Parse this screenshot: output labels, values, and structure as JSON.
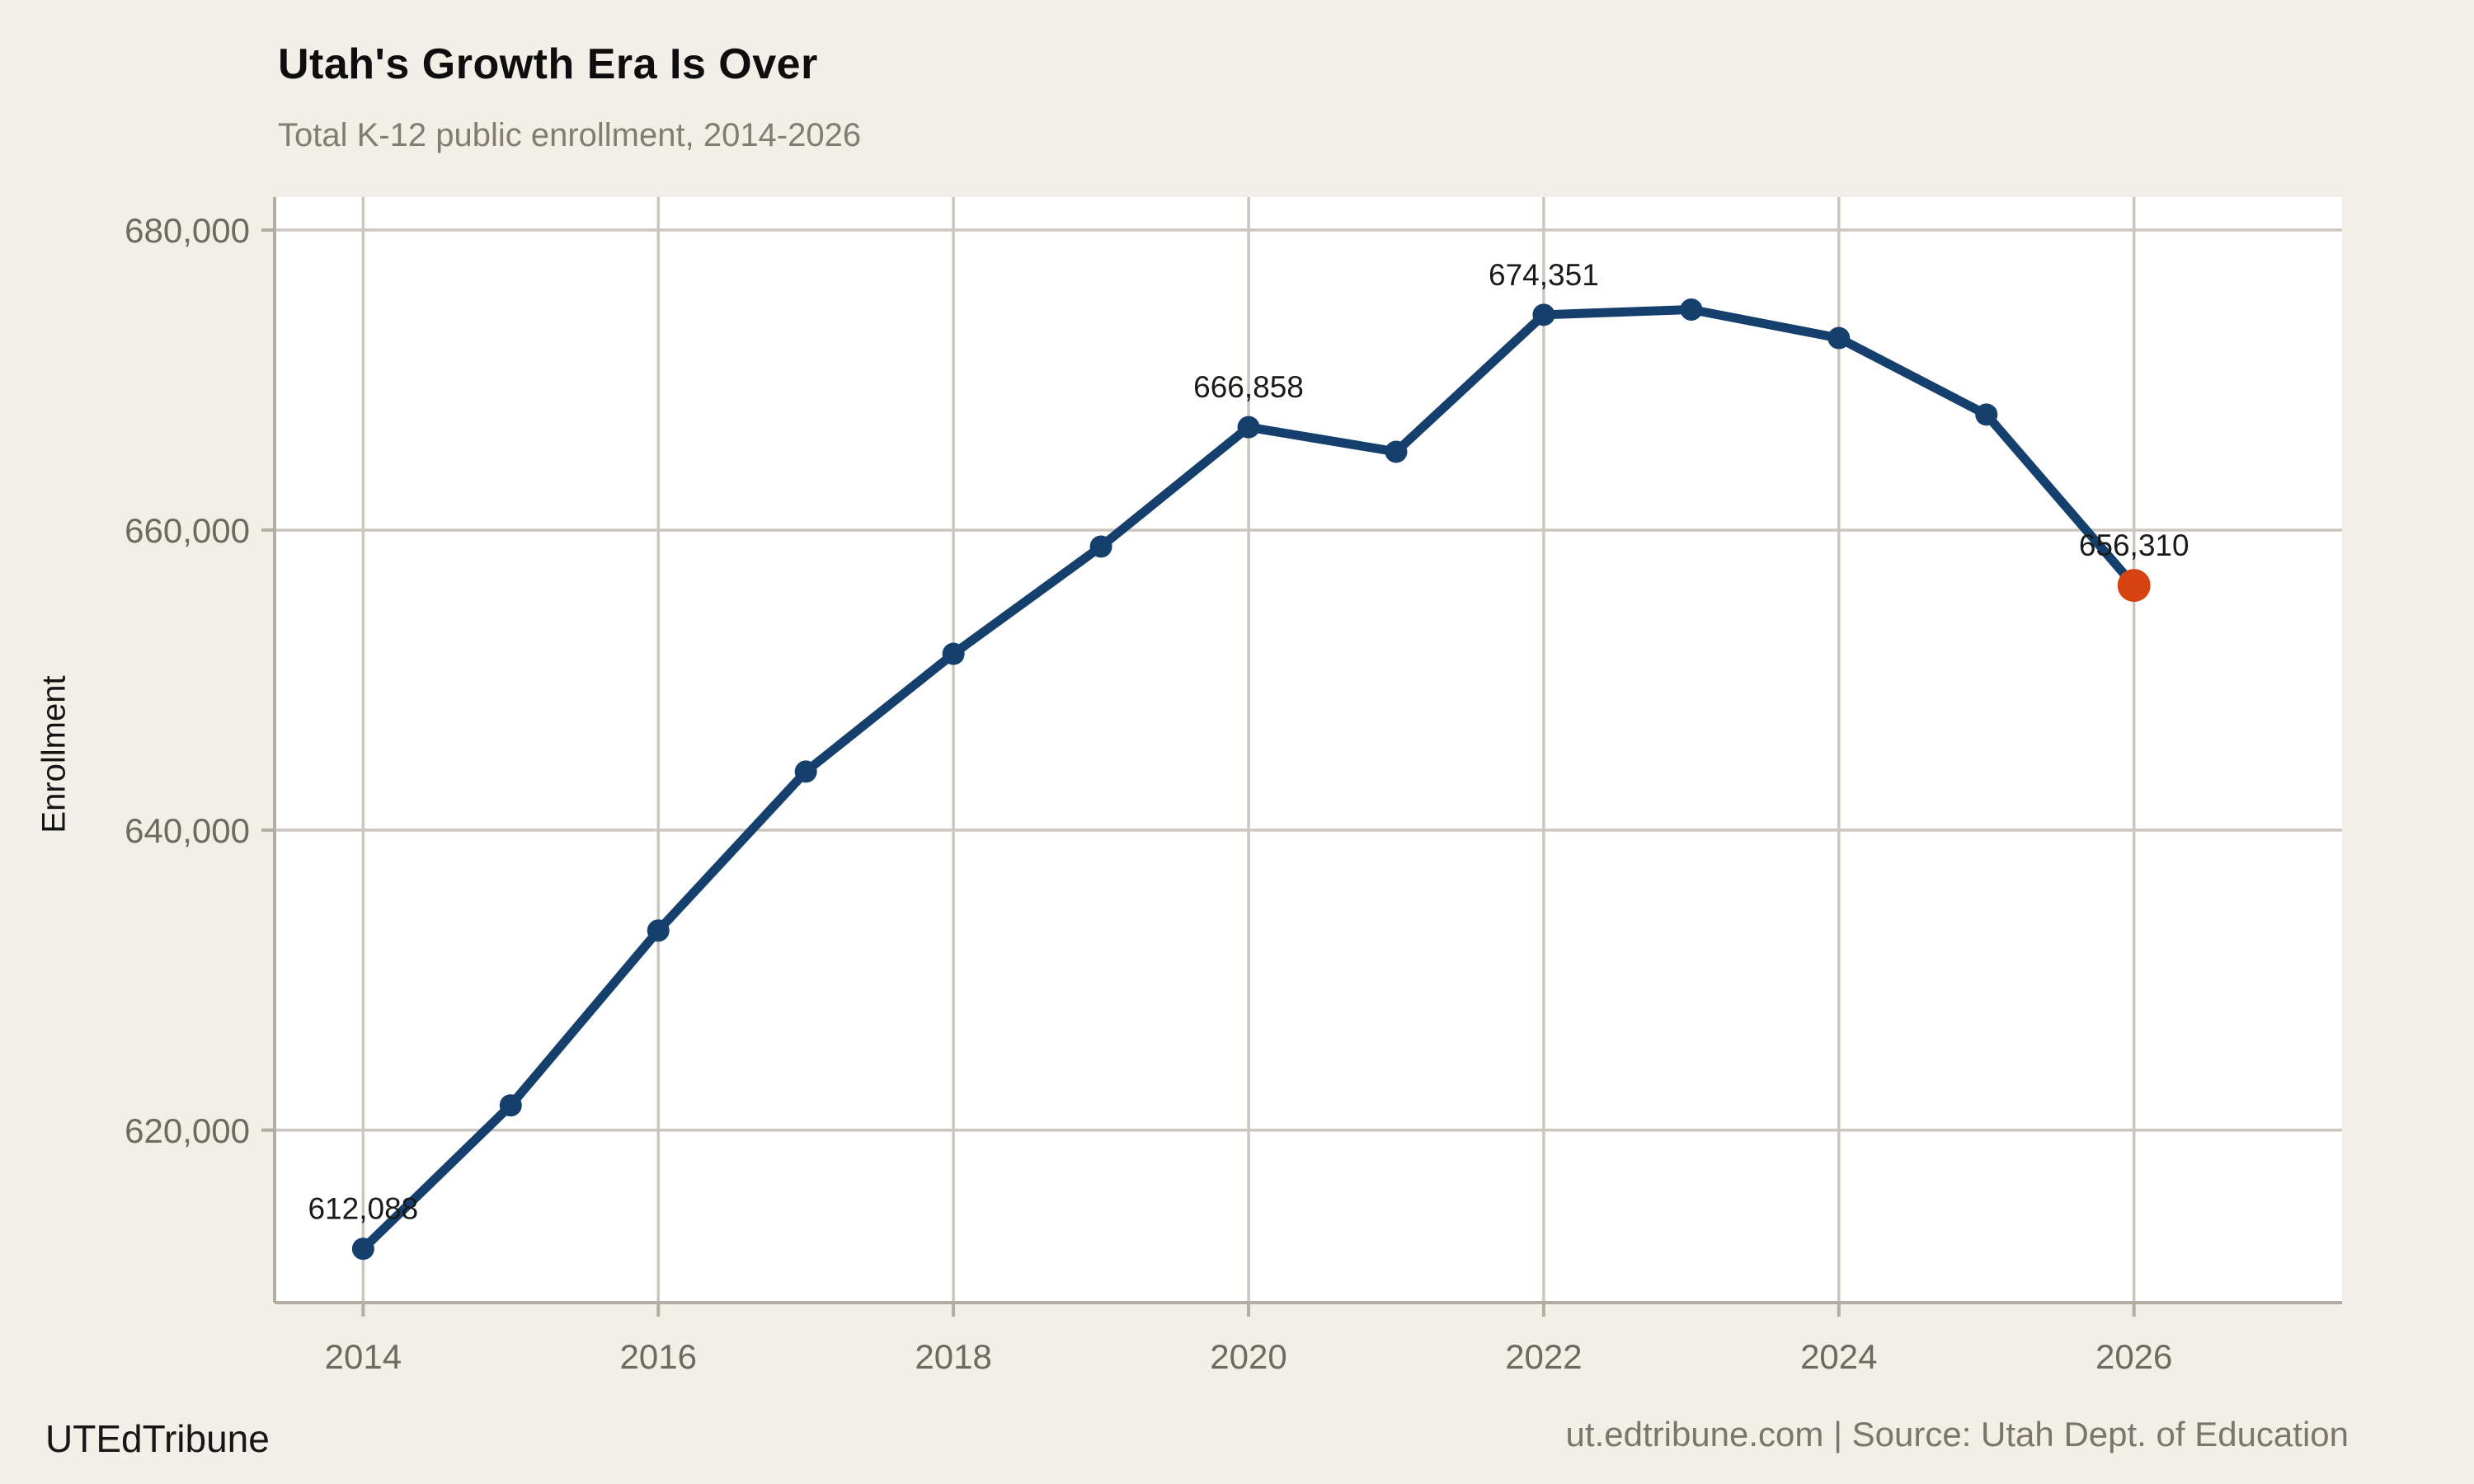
{
  "header": {
    "title": "Utah's Growth Era Is Over",
    "subtitle": "Total K-12 public enrollment, 2014-2026"
  },
  "footer": {
    "brand": "UTEdTribune",
    "source": "ut.edtribune.com | Source: Utah Dept. of Education"
  },
  "chart_data": {
    "type": "line",
    "title": "Utah's Growth Era Is Over",
    "subtitle": "Total K-12 public enrollment, 2014-2026",
    "xlabel": "",
    "ylabel": "Enrollment",
    "x": [
      2014,
      2015,
      2016,
      2017,
      2018,
      2019,
      2020,
      2021,
      2022,
      2023,
      2024,
      2025,
      2026
    ],
    "values": [
      612088,
      621650,
      633300,
      643900,
      651750,
      658900,
      666858,
      665220,
      674351,
      674700,
      672800,
      667700,
      656310
    ],
    "labeled_points": [
      {
        "x": 2014,
        "label": "612,088"
      },
      {
        "x": 2020,
        "label": "666,858"
      },
      {
        "x": 2022,
        "label": "674,351"
      },
      {
        "x": 2026,
        "label": "656,310"
      }
    ],
    "x_ticks": [
      2014,
      2016,
      2018,
      2020,
      2022,
      2024,
      2026
    ],
    "x_tick_labels": [
      "2014",
      "2016",
      "2018",
      "2020",
      "2022",
      "2024",
      "2026"
    ],
    "y_ticks": [
      620000,
      640000,
      660000,
      680000
    ],
    "y_tick_labels": [
      "620,000",
      "640,000",
      "660,000",
      "680,000"
    ],
    "xlim": [
      2013.4,
      2027.41
    ],
    "ylim": [
      608500,
      682200
    ],
    "grid": true,
    "legend_position": "none",
    "colors": {
      "line": "#15406D",
      "marker": "#15406D",
      "end_marker": "#D64210",
      "plot_bg": "#FFFFFF",
      "page_bg": "#F2EFE8",
      "grid": "#CCC7BE",
      "spine": "#B3ADA3",
      "tick_label": "#6E6A62",
      "data_label": "#1A1A1A"
    }
  }
}
